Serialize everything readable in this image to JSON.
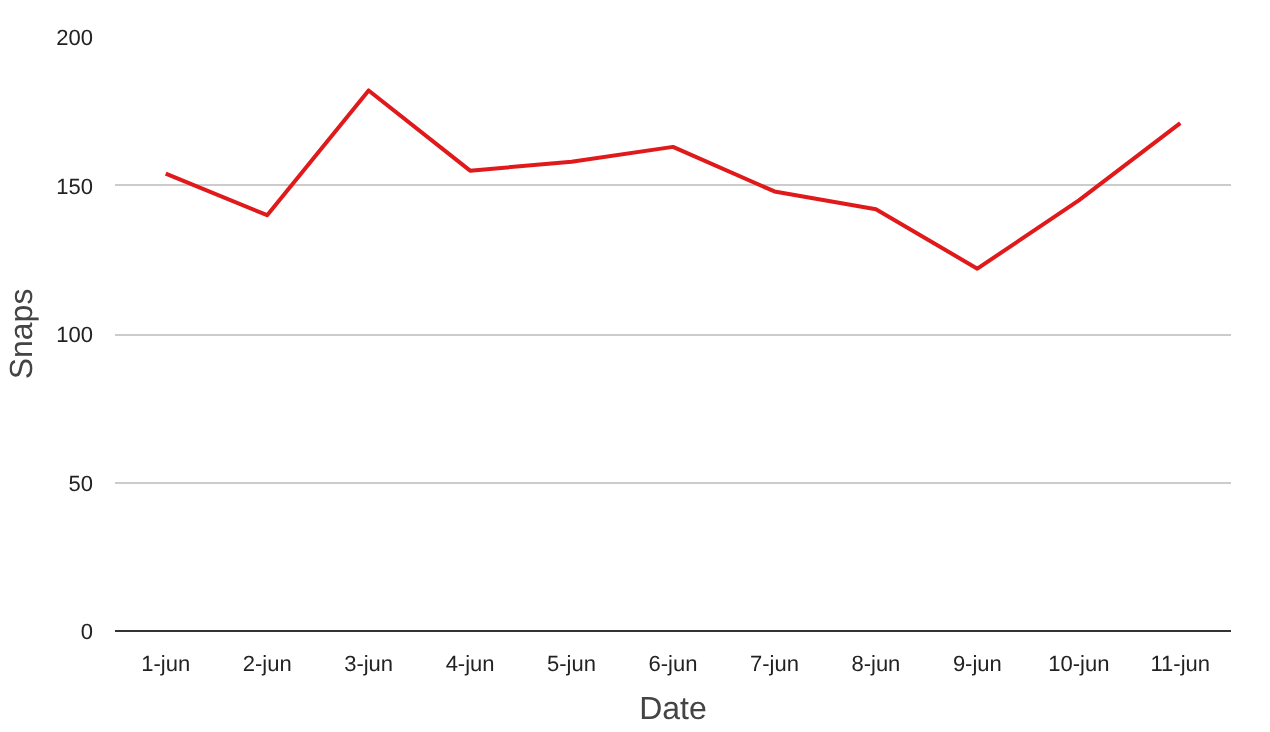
{
  "chart_data": {
    "type": "line",
    "xlabel": "Date",
    "ylabel": "Snaps",
    "categories": [
      "1-jun",
      "2-jun",
      "3-jun",
      "4-jun",
      "5-jun",
      "6-jun",
      "7-jun",
      "8-jun",
      "9-jun",
      "10-jun",
      "11-jun"
    ],
    "series": [
      {
        "color": "#e0191b",
        "values": [
          154,
          140,
          182,
          155,
          158,
          163,
          148,
          142,
          122,
          145,
          171
        ]
      }
    ],
    "ylim": [
      0,
      200
    ],
    "yticks": [
      0,
      50,
      100,
      150,
      200
    ],
    "grid": "y",
    "marker": "none",
    "line_style": "solid"
  }
}
